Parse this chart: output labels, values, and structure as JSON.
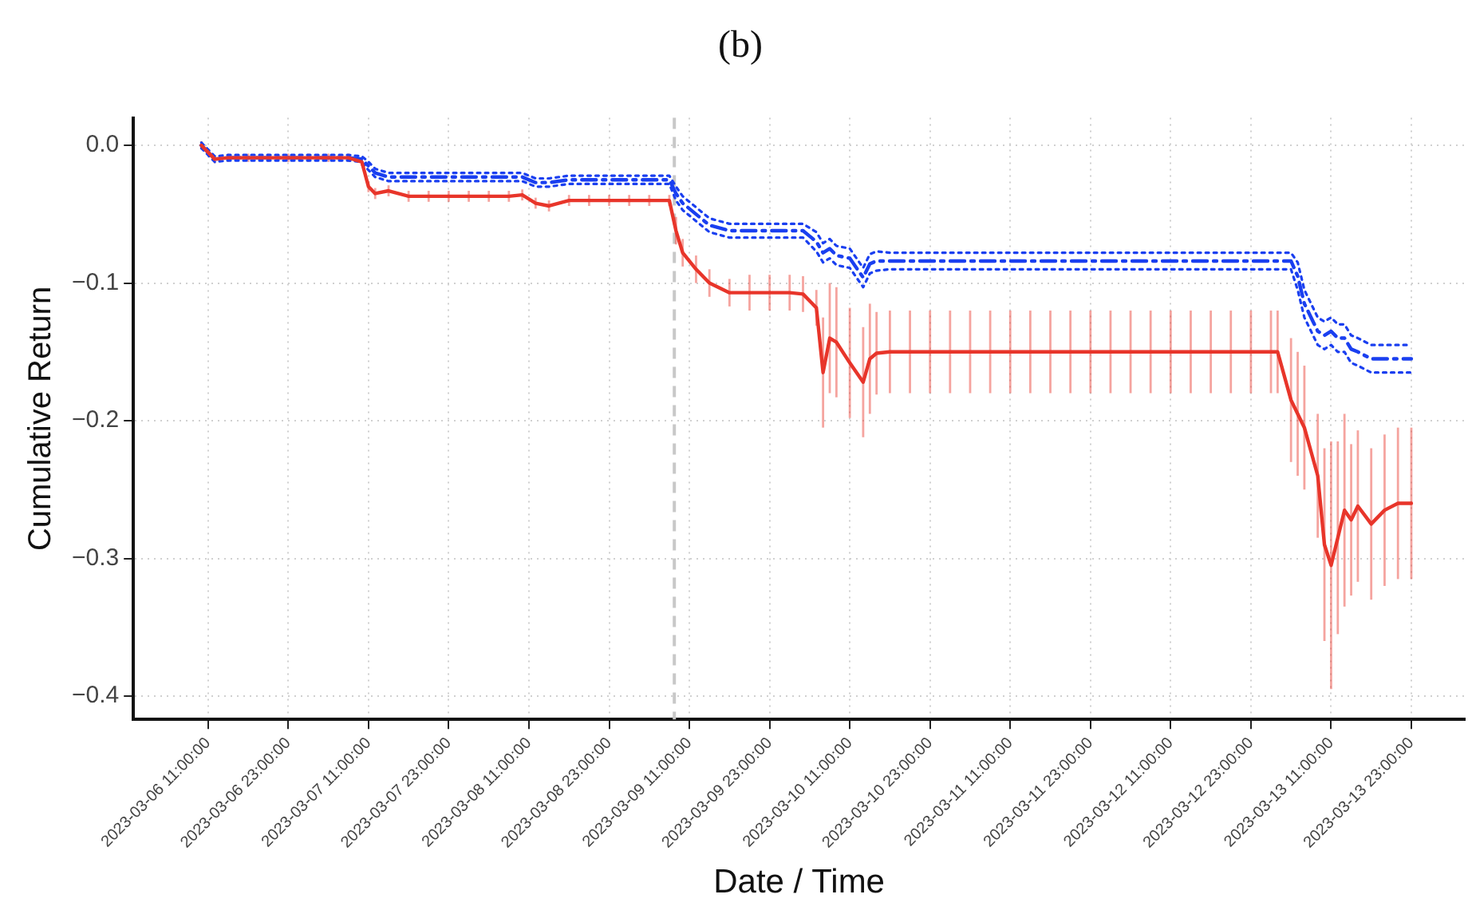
{
  "chart_data": {
    "type": "line",
    "title": "(b)",
    "xlabel": "Date / Time",
    "ylabel": "Cumulative Return",
    "x": [
      "2023-03-06T10:00",
      "2023-03-06T12:00",
      "2023-03-06T14:00",
      "2023-03-06T17:00",
      "2023-03-06T20:00",
      "2023-03-06T23:00",
      "2023-03-07T02:00",
      "2023-03-07T05:00",
      "2023-03-07T08:00",
      "2023-03-07T10:00",
      "2023-03-07T11:00",
      "2023-03-07T12:00",
      "2023-03-07T14:00",
      "2023-03-07T17:00",
      "2023-03-07T20:00",
      "2023-03-07T23:00",
      "2023-03-08T02:00",
      "2023-03-08T05:00",
      "2023-03-08T08:00",
      "2023-03-08T10:00",
      "2023-03-08T12:00",
      "2023-03-08T14:00",
      "2023-03-08T17:00",
      "2023-03-08T20:00",
      "2023-03-08T23:00",
      "2023-03-09T02:00",
      "2023-03-09T05:00",
      "2023-03-09T08:00",
      "2023-03-09T09:00",
      "2023-03-09T10:00",
      "2023-03-09T12:00",
      "2023-03-09T14:00",
      "2023-03-09T17:00",
      "2023-03-09T20:00",
      "2023-03-09T23:00",
      "2023-03-10T02:00",
      "2023-03-10T04:00",
      "2023-03-10T06:00",
      "2023-03-10T07:00",
      "2023-03-10T08:00",
      "2023-03-10T09:00",
      "2023-03-10T11:00",
      "2023-03-10T13:00",
      "2023-03-10T14:00",
      "2023-03-10T15:00",
      "2023-03-10T17:00",
      "2023-03-10T20:00",
      "2023-03-10T23:00",
      "2023-03-11T02:00",
      "2023-03-11T05:00",
      "2023-03-11T08:00",
      "2023-03-11T11:00",
      "2023-03-11T14:00",
      "2023-03-11T17:00",
      "2023-03-11T20:00",
      "2023-03-11T23:00",
      "2023-03-12T02:00",
      "2023-03-12T05:00",
      "2023-03-12T08:00",
      "2023-03-12T11:00",
      "2023-03-12T14:00",
      "2023-03-12T17:00",
      "2023-03-12T20:00",
      "2023-03-12T23:00",
      "2023-03-13T02:00",
      "2023-03-13T03:00",
      "2023-03-13T05:00",
      "2023-03-13T06:00",
      "2023-03-13T07:00",
      "2023-03-13T09:00",
      "2023-03-13T10:00",
      "2023-03-13T11:00",
      "2023-03-13T12:00",
      "2023-03-13T13:00",
      "2023-03-13T14:00",
      "2023-03-13T15:00",
      "2023-03-13T17:00",
      "2023-03-13T19:00",
      "2023-03-13T21:00",
      "2023-03-13T23:00"
    ],
    "series": [
      {
        "color": "#e8352a",
        "line_style": "solid",
        "values": [
          0,
          -0.01,
          -0.009,
          -0.009,
          -0.009,
          -0.009,
          -0.009,
          -0.009,
          -0.009,
          -0.012,
          -0.03,
          -0.035,
          -0.033,
          -0.037,
          -0.037,
          -0.037,
          -0.037,
          -0.037,
          -0.037,
          -0.036,
          -0.042,
          -0.044,
          -0.04,
          -0.04,
          -0.04,
          -0.04,
          -0.04,
          -0.04,
          -0.062,
          -0.078,
          -0.09,
          -0.1,
          -0.107,
          -0.107,
          -0.107,
          -0.107,
          -0.108,
          -0.118,
          -0.165,
          -0.14,
          -0.143,
          -0.158,
          -0.172,
          -0.155,
          -0.151,
          -0.15,
          -0.15,
          -0.15,
          -0.15,
          -0.15,
          -0.15,
          -0.15,
          -0.15,
          -0.15,
          -0.15,
          -0.15,
          -0.15,
          -0.15,
          -0.15,
          -0.15,
          -0.15,
          -0.15,
          -0.15,
          -0.15,
          -0.15,
          -0.15,
          -0.185,
          -0.195,
          -0.205,
          -0.24,
          -0.29,
          -0.305,
          -0.285,
          -0.265,
          -0.272,
          -0.262,
          -0.275,
          -0.265,
          -0.26,
          -0.26
        ],
        "errors": [
          0.003,
          0.003,
          0.003,
          0.003,
          0.003,
          0.003,
          0.003,
          0.003,
          0.003,
          0.003,
          0.004,
          0.004,
          0.004,
          0.004,
          0.004,
          0.004,
          0.004,
          0.004,
          0.004,
          0.004,
          0.004,
          0.004,
          0.004,
          0.004,
          0.004,
          0.004,
          0.004,
          0.004,
          0.01,
          0.01,
          0.01,
          0.01,
          0.01,
          0.013,
          0.013,
          0.013,
          0.013,
          0.013,
          0.04,
          0.04,
          0.04,
          0.04,
          0.04,
          0.04,
          0.03,
          0.03,
          0.03,
          0.03,
          0.03,
          0.03,
          0.03,
          0.03,
          0.03,
          0.03,
          0.03,
          0.03,
          0.03,
          0.03,
          0.03,
          0.03,
          0.03,
          0.03,
          0.03,
          0.03,
          0.03,
          0.03,
          0.045,
          0.045,
          0.045,
          0.045,
          0.07,
          0.09,
          0.07,
          0.07,
          0.055,
          0.055,
          0.055,
          0.055,
          0.055,
          0.055
        ]
      },
      {
        "color": "#1a3ff0",
        "line_style": "dashed",
        "values": [
          0,
          -0.01,
          -0.009,
          -0.009,
          -0.009,
          -0.009,
          -0.009,
          -0.009,
          -0.009,
          -0.01,
          -0.015,
          -0.02,
          -0.023,
          -0.023,
          -0.023,
          -0.023,
          -0.023,
          -0.023,
          -0.023,
          -0.023,
          -0.027,
          -0.027,
          -0.025,
          -0.025,
          -0.025,
          -0.025,
          -0.025,
          -0.025,
          -0.035,
          -0.042,
          -0.05,
          -0.058,
          -0.062,
          -0.062,
          -0.062,
          -0.062,
          -0.062,
          -0.07,
          -0.078,
          -0.075,
          -0.08,
          -0.082,
          -0.096,
          -0.086,
          -0.084,
          -0.084,
          -0.084,
          -0.084,
          -0.084,
          -0.084,
          -0.084,
          -0.084,
          -0.084,
          -0.084,
          -0.084,
          -0.084,
          -0.084,
          -0.084,
          -0.084,
          -0.084,
          -0.084,
          -0.084,
          -0.084,
          -0.084,
          -0.084,
          -0.084,
          -0.084,
          -0.095,
          -0.115,
          -0.135,
          -0.138,
          -0.135,
          -0.14,
          -0.14,
          -0.148,
          -0.15,
          -0.155,
          -0.155,
          -0.155,
          -0.155
        ]
      },
      {
        "color": "#1a3ff0",
        "line_style": "dotted",
        "values": [
          -0.002,
          -0.012,
          -0.011,
          -0.011,
          -0.011,
          -0.011,
          -0.011,
          -0.011,
          -0.011,
          -0.012,
          -0.018,
          -0.023,
          -0.026,
          -0.026,
          -0.026,
          -0.026,
          -0.026,
          -0.026,
          -0.026,
          -0.026,
          -0.03,
          -0.03,
          -0.028,
          -0.028,
          -0.028,
          -0.028,
          -0.028,
          -0.028,
          -0.04,
          -0.047,
          -0.055,
          -0.063,
          -0.067,
          -0.067,
          -0.067,
          -0.067,
          -0.067,
          -0.077,
          -0.085,
          -0.082,
          -0.087,
          -0.089,
          -0.103,
          -0.093,
          -0.091,
          -0.09,
          -0.09,
          -0.09,
          -0.09,
          -0.09,
          -0.09,
          -0.09,
          -0.09,
          -0.09,
          -0.09,
          -0.09,
          -0.09,
          -0.09,
          -0.09,
          -0.09,
          -0.09,
          -0.09,
          -0.09,
          -0.09,
          -0.09,
          -0.09,
          -0.09,
          -0.105,
          -0.125,
          -0.145,
          -0.148,
          -0.145,
          -0.15,
          -0.15,
          -0.158,
          -0.16,
          -0.165,
          -0.165,
          -0.165,
          -0.165
        ]
      },
      {
        "color": "#1a3ff0",
        "line_style": "dotted",
        "values": [
          0.002,
          -0.008,
          -0.007,
          -0.007,
          -0.007,
          -0.007,
          -0.007,
          -0.007,
          -0.007,
          -0.008,
          -0.012,
          -0.017,
          -0.02,
          -0.02,
          -0.02,
          -0.02,
          -0.02,
          -0.02,
          -0.02,
          -0.02,
          -0.024,
          -0.024,
          -0.022,
          -0.022,
          -0.022,
          -0.022,
          -0.022,
          -0.022,
          -0.03,
          -0.037,
          -0.045,
          -0.053,
          -0.057,
          -0.057,
          -0.057,
          -0.057,
          -0.057,
          -0.063,
          -0.071,
          -0.068,
          -0.073,
          -0.075,
          -0.089,
          -0.079,
          -0.077,
          -0.078,
          -0.078,
          -0.078,
          -0.078,
          -0.078,
          -0.078,
          -0.078,
          -0.078,
          -0.078,
          -0.078,
          -0.078,
          -0.078,
          -0.078,
          -0.078,
          -0.078,
          -0.078,
          -0.078,
          -0.078,
          -0.078,
          -0.078,
          -0.078,
          -0.078,
          -0.085,
          -0.105,
          -0.125,
          -0.128,
          -0.125,
          -0.13,
          -0.13,
          -0.138,
          -0.14,
          -0.145,
          -0.145,
          -0.145,
          -0.145
        ]
      }
    ],
    "xlim": [
      "2023-03-05T23:50",
      "2023-03-14T07:00"
    ],
    "xticks": [
      {
        "value": "2023-03-06T11:00",
        "label": "2023-03-06 11:00:00"
      },
      {
        "value": "2023-03-06T23:00",
        "label": "2023-03-06 23:00:00"
      },
      {
        "value": "2023-03-07T11:00",
        "label": "2023-03-07 11:00:00"
      },
      {
        "value": "2023-03-07T23:00",
        "label": "2023-03-07 23:00:00"
      },
      {
        "value": "2023-03-08T11:00",
        "label": "2023-03-08 11:00:00"
      },
      {
        "value": "2023-03-08T23:00",
        "label": "2023-03-08 23:00:00"
      },
      {
        "value": "2023-03-09T11:00",
        "label": "2023-03-09 11:00:00"
      },
      {
        "value": "2023-03-09T23:00",
        "label": "2023-03-09 23:00:00"
      },
      {
        "value": "2023-03-10T11:00",
        "label": "2023-03-10 11:00:00"
      },
      {
        "value": "2023-03-10T23:00",
        "label": "2023-03-10 23:00:00"
      },
      {
        "value": "2023-03-11T11:00",
        "label": "2023-03-11 11:00:00"
      },
      {
        "value": "2023-03-11T23:00",
        "label": "2023-03-11 23:00:00"
      },
      {
        "value": "2023-03-12T11:00",
        "label": "2023-03-12 11:00:00"
      },
      {
        "value": "2023-03-12T23:00",
        "label": "2023-03-12 23:00:00"
      },
      {
        "value": "2023-03-13T11:00",
        "label": "2023-03-13 11:00:00"
      },
      {
        "value": "2023-03-13T23:00",
        "label": "2023-03-13 23:00:00"
      }
    ],
    "ylim": [
      -0.417,
      0.02
    ],
    "yticks": [
      {
        "value": -0.4,
        "label": "−0.4"
      },
      {
        "value": -0.3,
        "label": "−0.3"
      },
      {
        "value": -0.2,
        "label": "−0.2"
      },
      {
        "value": -0.1,
        "label": "−0.1"
      },
      {
        "value": 0,
        "label": "0.0"
      }
    ],
    "ref_lines": [
      {
        "axis": "x",
        "value": "2023-03-09T08:45",
        "color": "#c8c8c8",
        "line_style": "dashed"
      }
    ],
    "grid": true,
    "legend": false,
    "marker": "none"
  }
}
